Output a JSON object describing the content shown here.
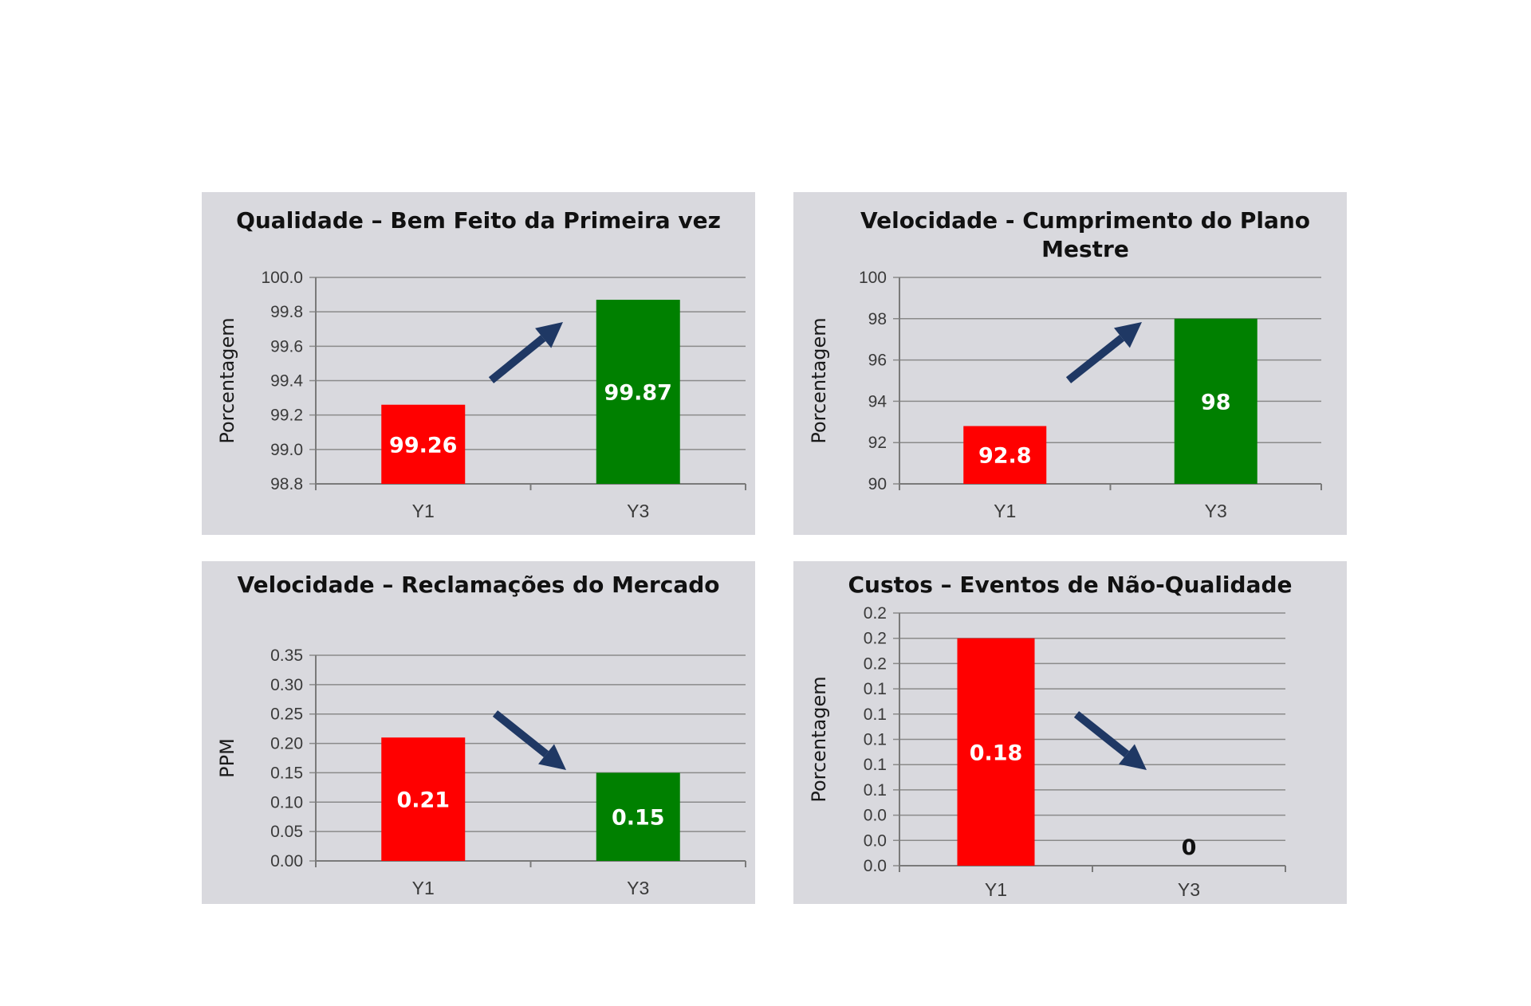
{
  "chart_data": [
    {
      "type": "bar",
      "title": "Qualidade – Bem Feito da Primeira vez",
      "ylabel": "Porcentagem",
      "categories": [
        "Y1",
        "Y3"
      ],
      "values": [
        99.26,
        99.87
      ],
      "value_labels": [
        "99.26",
        "99.87"
      ],
      "bar_colors": [
        "#ff0000",
        "#008000"
      ],
      "ylim": [
        98.8,
        100.0
      ],
      "yticks": [
        98.8,
        99.0,
        99.2,
        99.4,
        99.6,
        99.8,
        100.0
      ],
      "ytick_labels": [
        "98.8",
        "99.0",
        "99.2",
        "99.4",
        "99.6",
        "99.8",
        "100.0"
      ],
      "trend": "up",
      "grid": true
    },
    {
      "type": "bar",
      "title": [
        "Velocidade -  Cumprimento do Plano",
        "Mestre"
      ],
      "ylabel": "Porcentagem",
      "categories": [
        "Y1",
        "Y3"
      ],
      "values": [
        92.8,
        98
      ],
      "value_labels": [
        "92.8",
        "98"
      ],
      "bar_colors": [
        "#ff0000",
        "#008000"
      ],
      "ylim": [
        90,
        100
      ],
      "yticks": [
        90,
        92,
        94,
        96,
        98,
        100
      ],
      "ytick_labels": [
        "90",
        "92",
        "94",
        "96",
        "98",
        "100"
      ],
      "trend": "up",
      "grid": true
    },
    {
      "type": "bar",
      "title": "Velocidade – Reclamações do Mercado",
      "ylabel": "PPM",
      "categories": [
        "Y1",
        "Y3"
      ],
      "values": [
        0.21,
        0.15
      ],
      "value_labels": [
        "0.21",
        "0.15"
      ],
      "bar_colors": [
        "#ff0000",
        "#008000"
      ],
      "ylim": [
        0,
        0.35
      ],
      "yticks": [
        0,
        0.05,
        0.1,
        0.15,
        0.2,
        0.25,
        0.3,
        0.35
      ],
      "ytick_labels": [
        "0.00",
        "0.05",
        "0.10",
        "0.15",
        "0.20",
        "0.25",
        "0.30",
        "0.35"
      ],
      "trend": "down",
      "grid": true
    },
    {
      "type": "bar",
      "title": "Custos – Eventos de Não-Qualidade",
      "ylabel": "Porcentagem",
      "categories": [
        "Y1",
        "Y3"
      ],
      "values": [
        0.18,
        0
      ],
      "value_labels": [
        "0.18",
        "0"
      ],
      "bar_colors": [
        "#ff0000",
        "#008000"
      ],
      "ylim": [
        0,
        0.2
      ],
      "yticks": [
        0,
        0.02,
        0.04,
        0.06,
        0.08,
        0.1,
        0.12,
        0.14,
        0.16,
        0.18,
        0.2
      ],
      "ytick_labels": [
        "0.0",
        "0.0",
        "0.0",
        "0.1",
        "0.1",
        "0.1",
        "0.1",
        "0.1",
        "0.2",
        "0.2",
        "0.2"
      ],
      "trend": "down",
      "grid": true
    }
  ]
}
